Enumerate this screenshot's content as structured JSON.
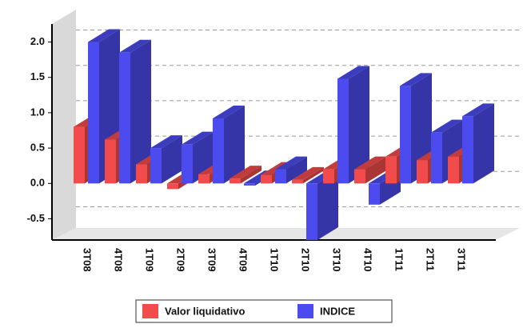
{
  "chart_data": {
    "type": "bar3d",
    "categories": [
      "3T08",
      "4T08",
      "1T09",
      "2T09",
      "3T09",
      "4T09",
      "1T10",
      "2T10",
      "3T10",
      "4T10",
      "1T11",
      "2T11",
      "3T11"
    ],
    "series": [
      {
        "name": "Valor liquidativo",
        "color": "#f24b4b",
        "values": [
          0.8,
          0.62,
          0.27,
          -0.08,
          0.13,
          0.07,
          0.12,
          0.05,
          0.2,
          0.2,
          0.38,
          0.33,
          0.38
        ]
      },
      {
        "name": "INDICE",
        "color": "#4b4bef",
        "values": [
          2.0,
          1.85,
          0.5,
          0.55,
          0.92,
          -0.03,
          0.2,
          -0.8,
          1.48,
          -0.3,
          1.38,
          0.72,
          0.95
        ]
      }
    ],
    "ylim": [
      -0.8,
      2.3
    ],
    "yticks": [
      -0.5,
      {
        "value": 0,
        "label": "0.0"
      },
      0.5,
      {
        "value": 1,
        "label": "1.0"
      },
      1.5,
      {
        "value": 2,
        "label": "2.0"
      }
    ],
    "grid": true,
    "legend": "bottom"
  }
}
